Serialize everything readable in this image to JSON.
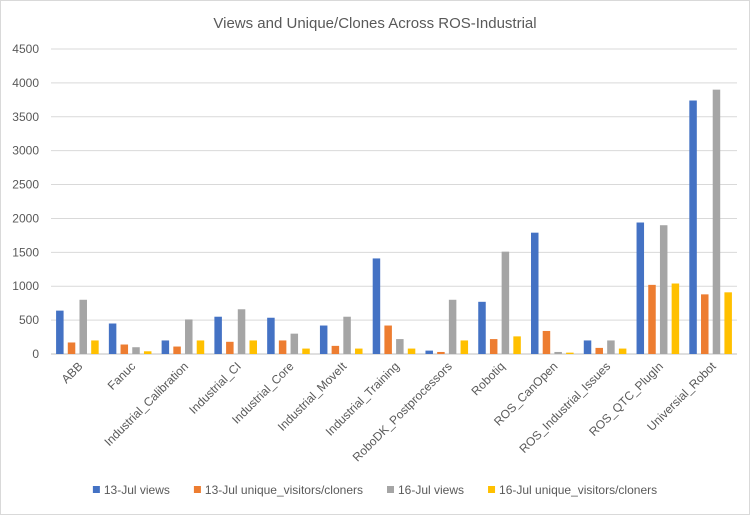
{
  "chart_data": {
    "type": "bar",
    "title": "Views and Unique/Clones Across ROS-Industrial",
    "xlabel": "",
    "ylabel": "",
    "ylim": [
      0,
      4500
    ],
    "yticks": [
      0,
      500,
      1000,
      1500,
      2000,
      2500,
      3000,
      3500,
      4000,
      4500
    ],
    "grid": true,
    "legend_position": "bottom",
    "categories": [
      "ABB",
      "Fanuc",
      "Industrial_Calibration",
      "Industrial_CI",
      "Industrial_Core",
      "Industrial_MoveIt",
      "Industrial_Training",
      "RoboDK_Postprocessors",
      "Robotiq",
      "ROS_CanOpen",
      "ROS_Industrial_Issues",
      "ROS_QTC_PlugIn",
      "Universial_Robot"
    ],
    "series": [
      {
        "name": "13-Jul views",
        "color": "#4472c4",
        "values": [
          640,
          450,
          200,
          550,
          535,
          420,
          1410,
          50,
          770,
          1790,
          200,
          1940,
          3740
        ]
      },
      {
        "name": "13-Jul unique_visitors/cloners",
        "color": "#ed7d31",
        "values": [
          170,
          140,
          110,
          180,
          200,
          120,
          420,
          30,
          220,
          340,
          90,
          1020,
          880
        ]
      },
      {
        "name": "16-Jul views",
        "color": "#a5a5a5",
        "values": [
          800,
          100,
          510,
          660,
          300,
          550,
          220,
          800,
          1510,
          30,
          200,
          1900,
          3900
        ]
      },
      {
        "name": "16-Jul unique_visitors/cloners",
        "color": "#ffc000",
        "values": [
          200,
          40,
          200,
          200,
          80,
          80,
          80,
          200,
          260,
          20,
          80,
          1040,
          910
        ]
      }
    ]
  }
}
